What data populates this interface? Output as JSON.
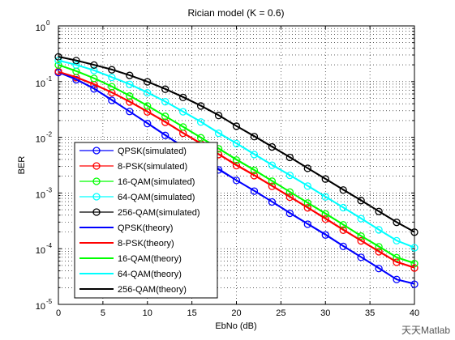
{
  "chart_data": {
    "type": "line",
    "title": "Rician model (K = 0.6)",
    "xlabel": "EbNo (dB)",
    "ylabel": "BER",
    "watermark": "天天Matlab",
    "log_y": true,
    "grid": true,
    "legend_position": "lower left",
    "x": [
      0,
      2,
      4,
      6,
      8,
      10,
      12,
      14,
      16,
      18,
      20,
      22,
      24,
      26,
      28,
      30,
      32,
      34,
      36,
      38,
      40
    ],
    "xlim": [
      0,
      40
    ],
    "xticks": [
      0,
      5,
      10,
      15,
      20,
      25,
      30,
      35,
      40
    ],
    "ylim": [
      1e-05,
      1
    ],
    "yticks": [
      {
        "value": 1e-05,
        "label": "10",
        "exponent": "-5"
      },
      {
        "value": 0.0001,
        "label": "10",
        "exponent": "-4"
      },
      {
        "value": 0.001,
        "label": "10",
        "exponent": "-3"
      },
      {
        "value": 0.01,
        "label": "10",
        "exponent": "-2"
      },
      {
        "value": 0.1,
        "label": "10",
        "exponent": "-1"
      },
      {
        "value": 1,
        "label": "10",
        "exponent": "0"
      }
    ],
    "yminorticks": [
      2e-05,
      3e-05,
      4e-05,
      5e-05,
      6e-05,
      7e-05,
      8e-05,
      9e-05,
      0.0002,
      0.0003,
      0.0004,
      0.0005,
      0.0006,
      0.0007,
      0.0008,
      0.0009,
      0.002,
      0.003,
      0.004,
      0.005,
      0.006,
      0.007,
      0.008,
      0.009,
      0.02,
      0.03,
      0.04,
      0.05,
      0.06,
      0.07,
      0.08,
      0.09,
      0.2,
      0.3,
      0.4,
      0.5,
      0.6,
      0.7,
      0.8,
      0.9
    ],
    "series": [
      {
        "name": "QPSK(simulated)",
        "color": "#0000ff",
        "marker": "o",
        "values": [
          0.145,
          0.108,
          0.074,
          0.046,
          0.029,
          0.0176,
          0.0108,
          0.0067,
          0.0042,
          0.0026,
          0.00168,
          0.00108,
          0.00069,
          0.00043,
          0.000275,
          0.000176,
          0.00011,
          7e-05,
          4.4e-05,
          2.8e-05,
          2.3e-05
        ]
      },
      {
        "name": "8-PSK(simulated)",
        "color": "#ff0000",
        "marker": "o",
        "values": [
          0.152,
          0.118,
          0.088,
          0.063,
          0.043,
          0.0285,
          0.0186,
          0.0118,
          0.0076,
          0.0049,
          0.0031,
          0.00205,
          0.00132,
          0.00084,
          0.00054,
          0.00034,
          0.000215,
          0.000138,
          8.8e-05,
          5.7e-05,
          4.5e-05
        ]
      },
      {
        "name": "16-QAM(simulated)",
        "color": "#00ff00",
        "marker": "o",
        "values": [
          0.198,
          0.153,
          0.114,
          0.081,
          0.055,
          0.0365,
          0.0238,
          0.0153,
          0.0098,
          0.0062,
          0.0039,
          0.00255,
          0.00163,
          0.00104,
          0.00066,
          0.00042,
          0.000268,
          0.000168,
          0.000108,
          6.9e-05,
          5.4e-05
        ]
      },
      {
        "name": "64-QAM(simulated)",
        "color": "#00ffff",
        "marker": "o",
        "values": [
          0.238,
          0.198,
          0.158,
          0.119,
          0.089,
          0.063,
          0.0435,
          0.0287,
          0.0188,
          0.0118,
          0.0077,
          0.0049,
          0.00315,
          0.00207,
          0.00133,
          0.00085,
          0.000545,
          0.000346,
          0.000218,
          0.000139,
          0.000104
        ]
      },
      {
        "name": "256-QAM(simulated)",
        "color": "#000000",
        "marker": "o",
        "values": [
          0.278,
          0.238,
          0.198,
          0.163,
          0.129,
          0.099,
          0.073,
          0.052,
          0.0365,
          0.0246,
          0.0158,
          0.0103,
          0.0067,
          0.00435,
          0.00277,
          0.00178,
          0.00113,
          0.00073,
          0.000465,
          0.000297,
          0.000198
        ]
      },
      {
        "name": "QPSK(theory)",
        "color": "#0000ff",
        "values": [
          0.148,
          0.11,
          0.075,
          0.047,
          0.029,
          0.018,
          0.011,
          0.0068,
          0.0043,
          0.0027,
          0.0017,
          0.0011,
          0.0007,
          0.00044,
          0.00028,
          0.00018,
          0.000112,
          7.1e-05,
          4.5e-05,
          2.8e-05,
          2.35e-05
        ]
      },
      {
        "name": "8-PSK(theory)",
        "color": "#ff0000",
        "values": [
          0.15,
          0.12,
          0.09,
          0.064,
          0.044,
          0.029,
          0.019,
          0.012,
          0.0078,
          0.005,
          0.0032,
          0.0021,
          0.00135,
          0.00086,
          0.00055,
          0.00035,
          0.00022,
          0.00014,
          9e-05,
          5.8e-05,
          4.6e-05
        ]
      },
      {
        "name": "16-QAM(theory)",
        "color": "#00ff00",
        "values": [
          0.2,
          0.155,
          0.115,
          0.082,
          0.056,
          0.037,
          0.024,
          0.0155,
          0.0099,
          0.0063,
          0.004,
          0.0026,
          0.00165,
          0.00105,
          0.00067,
          0.00043,
          0.00027,
          0.00017,
          0.00011,
          7e-05,
          5.5e-05
        ]
      },
      {
        "name": "64-QAM(theory)",
        "color": "#00ffff",
        "values": [
          0.24,
          0.2,
          0.16,
          0.12,
          0.09,
          0.064,
          0.044,
          0.029,
          0.019,
          0.012,
          0.0078,
          0.005,
          0.0032,
          0.0021,
          0.00135,
          0.00086,
          0.00055,
          0.00035,
          0.00022,
          0.00014,
          0.000105
        ]
      },
      {
        "name": "256-QAM(theory)",
        "color": "#000000",
        "values": [
          0.28,
          0.24,
          0.2,
          0.165,
          0.13,
          0.1,
          0.074,
          0.053,
          0.037,
          0.025,
          0.016,
          0.0105,
          0.0068,
          0.0044,
          0.0028,
          0.0018,
          0.00115,
          0.00074,
          0.00047,
          0.0003,
          0.0002
        ]
      }
    ]
  }
}
